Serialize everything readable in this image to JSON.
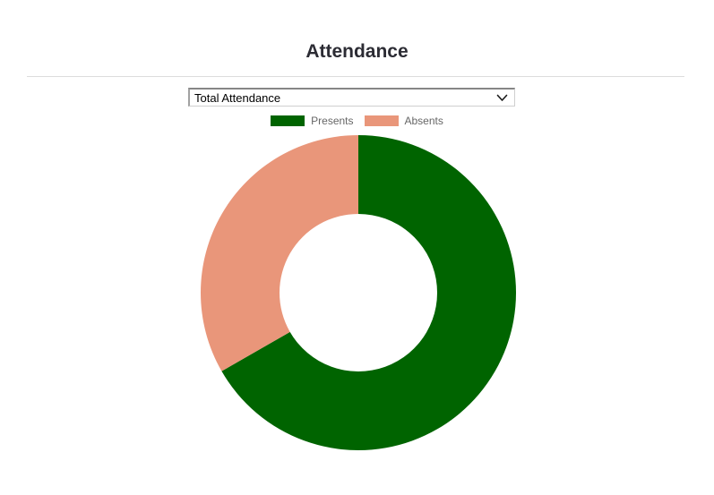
{
  "page": {
    "background_color": "#ffffff"
  },
  "header": {
    "title": "Attendance",
    "title_color": "#2c2c34",
    "divider_color": "#dcdcdc"
  },
  "filter": {
    "selected_option": "Total Attendance",
    "chevron_icon": "chevron-down"
  },
  "legend": {
    "label_color": "#666666",
    "items": [
      {
        "label": "Presents",
        "color": "#006400"
      },
      {
        "label": "Absents",
        "color": "#e9967a"
      }
    ]
  },
  "chart_data": {
    "type": "pie",
    "subtype": "doughnut",
    "title": "Attendance",
    "labels": [
      "Presents",
      "Absents"
    ],
    "values": [
      66.7,
      33.3
    ],
    "unit": "percent",
    "colors": [
      "#006400",
      "#e9967a"
    ],
    "cutout_percent": 50,
    "start_angle_deg": 0,
    "direction": "clockwise",
    "legend_position": "top",
    "legend_label_color": "#666666"
  }
}
